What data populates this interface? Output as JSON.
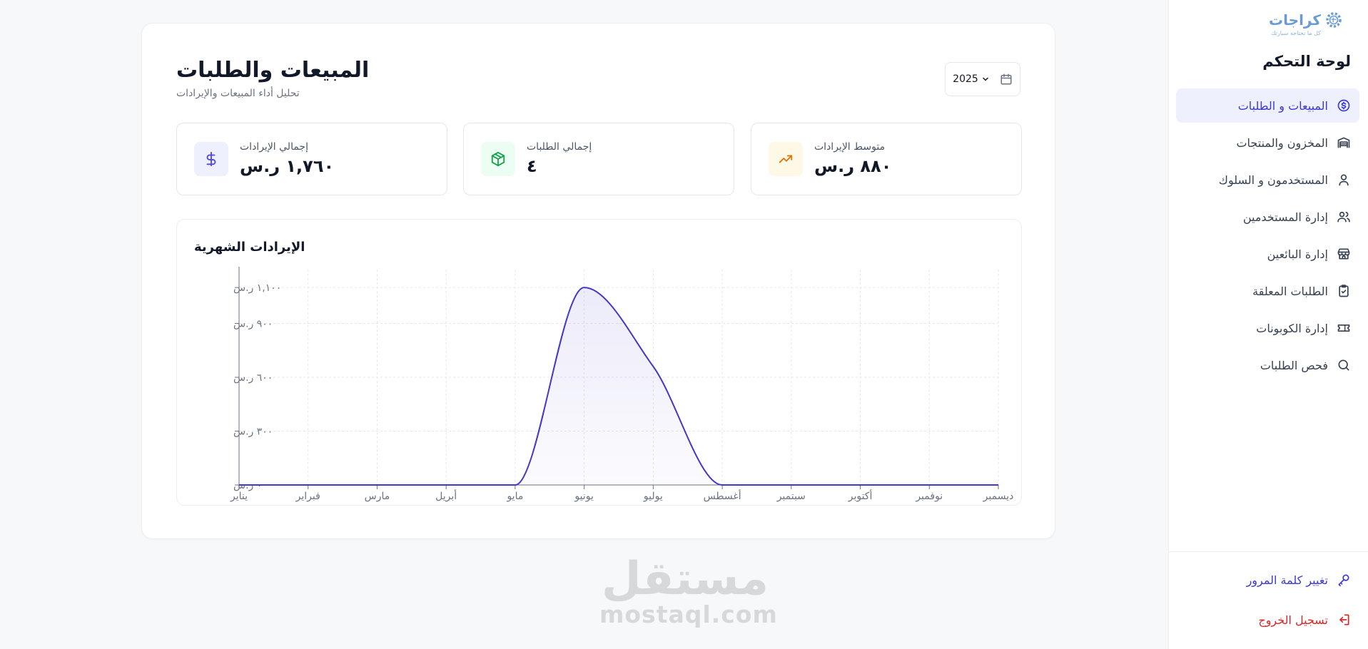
{
  "sidebar": {
    "logo": {
      "text": "كراجات",
      "tagline": "كل ما تحتاجه سيارتك"
    },
    "title": "لوحة التحكم",
    "items": [
      {
        "label": "المبيعات و الطلبات",
        "icon": "dollar-circle-icon",
        "active": true
      },
      {
        "label": "المخزون والمنتجات",
        "icon": "warehouse-icon",
        "active": false
      },
      {
        "label": "المستخدمون و السلوك",
        "icon": "user-icon",
        "active": false
      },
      {
        "label": "إدارة المستخدمين",
        "icon": "users-icon",
        "active": false
      },
      {
        "label": "إدارة البائعين",
        "icon": "store-icon",
        "active": false
      },
      {
        "label": "الطلبات المعلقة",
        "icon": "clipboard-check-icon",
        "active": false
      },
      {
        "label": "إدارة الكوبونات",
        "icon": "ticket-icon",
        "active": false
      },
      {
        "label": "فحص الطلبات",
        "icon": "search-icon",
        "active": false
      }
    ],
    "change_password": "تغيير كلمة المرور",
    "logout": "تسجيل الخروج"
  },
  "header": {
    "title": "المبيعات والطلبات",
    "subtitle": "تحليل أداء المبيعات والإيرادات",
    "year": "2025"
  },
  "stats": [
    {
      "label": "إجمالي الإيرادات",
      "value": "١,٧٦٠ ر.س",
      "icon": "dollar-icon",
      "color": "#4f46e5",
      "bg": "#eef0fd"
    },
    {
      "label": "إجمالي الطلبات",
      "value": "٤",
      "icon": "package-icon",
      "color": "#16a34a",
      "bg": "#ecfdf3"
    },
    {
      "label": "متوسط الإيرادات",
      "value": "٨٨٠ ر.س",
      "icon": "trending-up-icon",
      "color": "#d97706",
      "bg": "#fef9e7"
    }
  ],
  "chart_title": "الإيرادات الشهرية",
  "chart_data": {
    "type": "area",
    "title": "الإيرادات الشهرية",
    "categories": [
      "يناير",
      "فبراير",
      "مارس",
      "أبريل",
      "مايو",
      "يونيو",
      "يوليو",
      "أغسطس",
      "سبتمبر",
      "أكتوبر",
      "نوفمبر",
      "ديسمبر"
    ],
    "values": [
      0,
      0,
      0,
      0,
      0,
      1100,
      660,
      0,
      0,
      0,
      0,
      0
    ],
    "y_ticks": [
      0,
      300,
      600,
      900,
      1100
    ],
    "y_tick_labels": [
      "٠ ر.س",
      "٣٠٠ ر.س",
      "٦٠٠ ر.س",
      "٩٠٠ ر.س",
      "١,١٠٠ ر.س"
    ],
    "ylim": [
      0,
      1200
    ],
    "grid": true,
    "color": "#4338ca"
  },
  "watermark": {
    "arabic": "مستقل",
    "english": "mostaql.com"
  }
}
